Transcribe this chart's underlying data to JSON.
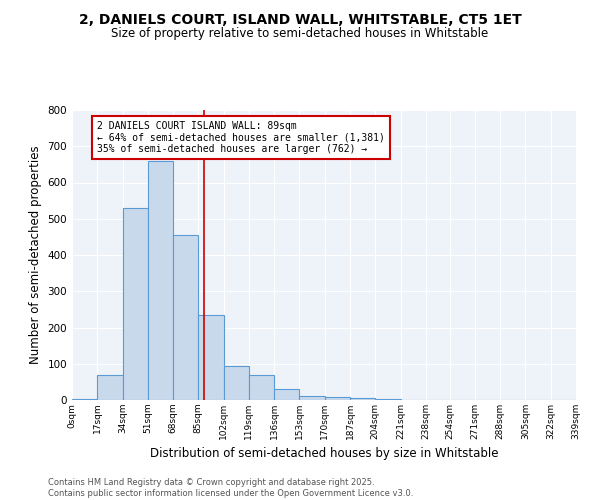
{
  "title1": "2, DANIELS COURT, ISLAND WALL, WHITSTABLE, CT5 1ET",
  "title2": "Size of property relative to semi-detached houses in Whitstable",
  "xlabel": "Distribution of semi-detached houses by size in Whitstable",
  "ylabel": "Number of semi-detached properties",
  "bin_edges": [
    0,
    17,
    34,
    51,
    68,
    85,
    102,
    119,
    136,
    153,
    170,
    187,
    204,
    221,
    238,
    254,
    271,
    288,
    305,
    322,
    339
  ],
  "bar_heights": [
    2,
    70,
    530,
    660,
    455,
    235,
    93,
    68,
    30,
    10,
    8,
    5,
    3,
    0,
    0,
    0,
    0,
    0,
    0,
    0
  ],
  "bar_color": "#c9d9ec",
  "bar_edge_color": "#5b9bd5",
  "red_line_x": 89,
  "annotation_title": "2 DANIELS COURT ISLAND WALL: 89sqm",
  "annotation_line1": "← 64% of semi-detached houses are smaller (1,381)",
  "annotation_line2": "35% of semi-detached houses are larger (762) →",
  "annotation_box_color": "#ffffff",
  "annotation_box_edge_color": "#cc0000",
  "footnote1": "Contains HM Land Registry data © Crown copyright and database right 2025.",
  "footnote2": "Contains public sector information licensed under the Open Government Licence v3.0.",
  "ylim": [
    0,
    800
  ],
  "yticks": [
    0,
    100,
    200,
    300,
    400,
    500,
    600,
    700,
    800
  ],
  "background_color": "#eef2f9",
  "title_fontsize": 10,
  "subtitle_fontsize": 8.5
}
